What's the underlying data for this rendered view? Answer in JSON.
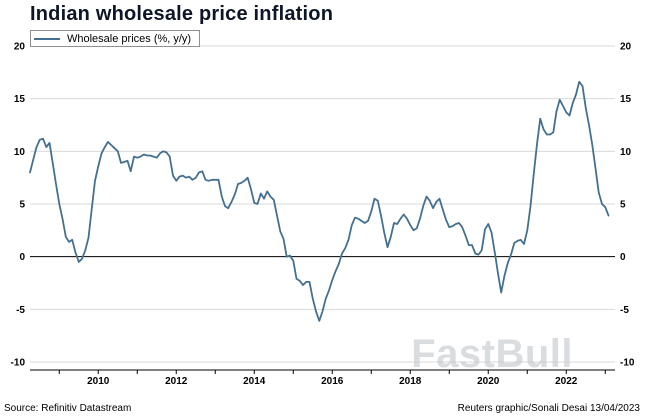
{
  "title": "Indian wholesale price inflation",
  "legend": {
    "label": "Wholesale prices (%, y/y)"
  },
  "footer": {
    "source": "Source: Refinitiv Datastream",
    "credit": "Reuters graphic/Sonali Desai 13/04/2023"
  },
  "watermark": "FastBull",
  "colors": {
    "line": "#44708f",
    "grid": "#d9d9d9",
    "zero_line": "#000000",
    "axis": "#000000",
    "title": "#0d1626",
    "watermark": "#c3c8cd"
  },
  "chart_data": {
    "type": "line",
    "title": "Indian wholesale price inflation",
    "xlabel": "",
    "ylabel": "",
    "ylim": [
      -10,
      20
    ],
    "ytick_step": 5,
    "x_range_years": [
      2008.25,
      2023.25
    ],
    "x_tick_labels": [
      "2010",
      "2012",
      "2014",
      "2016",
      "2018",
      "2020",
      "2022"
    ],
    "grid": "horizontal",
    "legend_position": "top-left",
    "series": [
      {
        "name": "Wholesale prices (%, y/y)",
        "frequency": "monthly",
        "start": {
          "year": 2008,
          "month": 4
        },
        "values": [
          8.0,
          9.2,
          10.4,
          11.1,
          11.2,
          10.4,
          10.8,
          8.9,
          6.9,
          5.0,
          3.6,
          1.9,
          1.4,
          1.6,
          0.4,
          -0.5,
          -0.2,
          0.6,
          1.8,
          4.5,
          7.2,
          8.6,
          9.8,
          10.4,
          10.9,
          10.6,
          10.3,
          10.0,
          8.9,
          9.0,
          9.1,
          8.1,
          9.5,
          9.4,
          9.5,
          9.7,
          9.6,
          9.6,
          9.5,
          9.4,
          9.8,
          10.0,
          9.9,
          9.5,
          7.7,
          7.2,
          7.6,
          7.7,
          7.5,
          7.6,
          7.3,
          7.5,
          8.0,
          8.1,
          7.3,
          7.2,
          7.3,
          7.3,
          7.3,
          5.7,
          4.8,
          4.6,
          5.2,
          5.9,
          6.9,
          7.0,
          7.2,
          7.5,
          6.4,
          5.1,
          5.0,
          6.0,
          5.5,
          6.2,
          5.7,
          5.4,
          3.9,
          2.4,
          1.7,
          0.0,
          0.1,
          -0.4,
          -2.1,
          -2.3,
          -2.7,
          -2.4,
          -2.4,
          -4.0,
          -5.2,
          -6.1,
          -5.2,
          -4.0,
          -3.2,
          -2.2,
          -1.4,
          -0.7,
          0.3,
          0.8,
          1.6,
          3.0,
          3.7,
          3.6,
          3.4,
          3.2,
          3.4,
          4.3,
          5.5,
          5.3,
          3.9,
          2.3,
          0.9,
          1.9,
          3.2,
          3.1,
          3.6,
          4.0,
          3.6,
          3.0,
          2.5,
          2.7,
          3.6,
          4.8,
          5.7,
          5.3,
          4.6,
          5.2,
          5.5,
          4.5,
          3.5,
          2.8,
          2.9,
          3.1,
          3.2,
          2.8,
          2.0,
          1.1,
          1.1,
          0.3,
          0.2,
          0.6,
          2.6,
          3.1,
          2.3,
          0.4,
          -1.6,
          -3.4,
          -1.8,
          -0.6,
          0.2,
          1.3,
          1.5,
          1.6,
          1.2,
          2.5,
          4.8,
          7.9,
          10.7,
          13.1,
          12.1,
          11.6,
          11.6,
          11.8,
          13.8,
          14.9,
          14.3,
          13.7,
          13.4,
          14.6,
          15.4,
          16.6,
          16.2,
          14.1,
          12.5,
          10.6,
          8.4,
          6.1,
          5.0,
          4.7,
          3.9
        ]
      }
    ]
  }
}
